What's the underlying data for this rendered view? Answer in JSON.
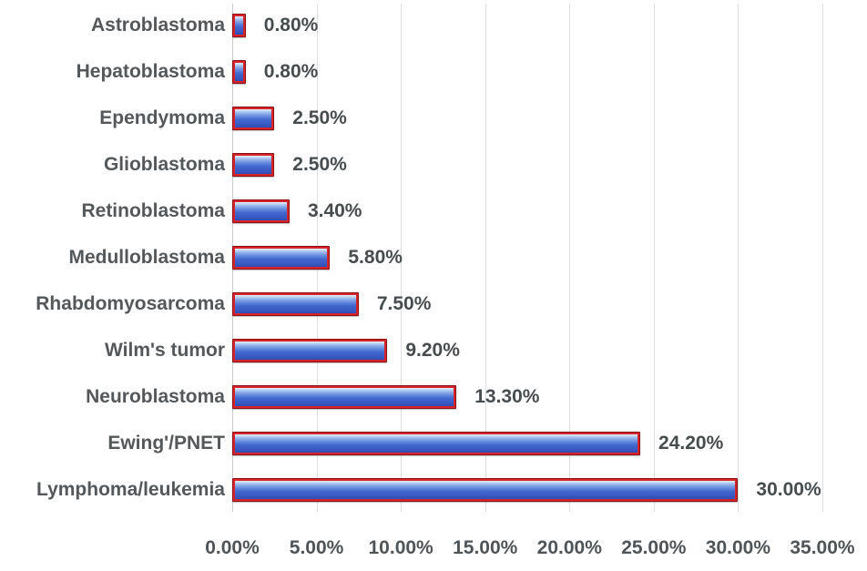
{
  "figure": {
    "background": "#ffffff"
  },
  "chart_data": {
    "type": "bar",
    "orientation": "horizontal",
    "title": "",
    "xlabel": "",
    "ylabel": "",
    "categories": [
      "Astroblastoma",
      "Hepatoblastoma",
      "Ependymoma",
      "Glioblastoma",
      "Retinoblastoma",
      "Medulloblastoma",
      "Rhabdomyosarcoma",
      "Wilm's tumor",
      "Neuroblastoma",
      "Ewing'/PNET",
      "Lymphoma/leukemia"
    ],
    "values": [
      0.8,
      0.8,
      2.5,
      2.5,
      3.4,
      5.8,
      7.5,
      9.2,
      13.3,
      24.2,
      30.0
    ],
    "value_labels": [
      "0.80%",
      "0.80%",
      "2.50%",
      "2.50%",
      "3.40%",
      "5.80%",
      "7.50%",
      "9.20%",
      "13.30%",
      "24.20%",
      "30.00%"
    ],
    "x_axis": {
      "min": 0,
      "max": 35,
      "step": 5,
      "ticks": [
        "0.00%",
        "5.00%",
        "10.00%",
        "15.00%",
        "20.00%",
        "25.00%",
        "30.00%",
        "35.00%"
      ]
    },
    "grid": true,
    "legend": false,
    "colors": {
      "bar_fill": "#3f65cb",
      "bar_highlight": "#bcd3f3",
      "bar_border": "#d6242b",
      "bar_border_outer": "#8c1014",
      "gridline": "#dcdedf",
      "axis_line": "#c9ccce",
      "label_text": "#54585a",
      "tick_text": "#4e5457"
    }
  }
}
